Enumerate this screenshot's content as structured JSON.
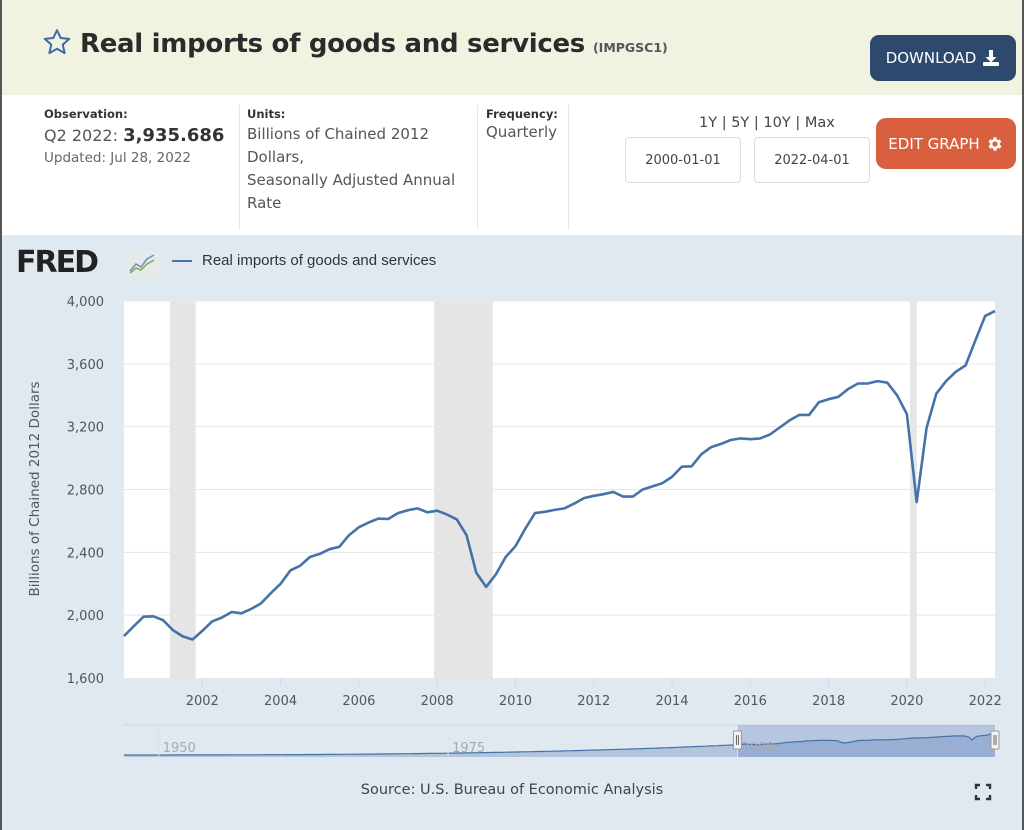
{
  "header": {
    "title": "Real imports of goods and services",
    "series_id": "(IMPGSC1)",
    "favorite_icon": "star-outline-icon",
    "download_label": "DOWNLOAD",
    "download_icon": "download-icon"
  },
  "info": {
    "observation_label": "Observation:",
    "observation_period": "Q2 2022:",
    "observation_value": "3,935.686",
    "updated": "Updated: Jul 28, 2022",
    "units_label": "Units:",
    "units_lines": [
      "Billions of Chained 2012",
      "Dollars,",
      "Seasonally Adjusted Annual",
      "Rate"
    ],
    "frequency_label": "Frequency:",
    "frequency_value": "Quarterly",
    "range_links": [
      "1Y",
      "5Y",
      "10Y",
      "Max"
    ],
    "range_separator": " | ",
    "start_date": "2000-01-01",
    "end_date": "2022-04-01",
    "edit_label": "EDIT GRAPH",
    "edit_icon": "gear-icon"
  },
  "chart_header": {
    "logo_text": "FRED",
    "logo_icon": "fred-chart-icon",
    "legend_label": "Real imports of goods and services"
  },
  "footer": {
    "source": "Source: U.S. Bureau of Economic Analysis",
    "fullscreen_icon": "fullscreen-icon"
  },
  "colors": {
    "line": "#4572a7",
    "header_bg": "#f1f2e0",
    "download_bg": "#2d4a6e",
    "edit_bg": "#d9603f",
    "chart_bg": "#e1e9f0",
    "recession": "#e5e5e5"
  },
  "chart_data": {
    "type": "line",
    "title": "Real imports of goods and services",
    "xlabel": "",
    "ylabel": "Billions of Chained 2012 Dollars",
    "ylim": [
      1600,
      4000
    ],
    "xlim": [
      2000.0,
      2022.25
    ],
    "y_ticks": [
      "1,600",
      "2,000",
      "2,400",
      "2,800",
      "3,200",
      "3,600",
      "4,000"
    ],
    "y_tick_values": [
      1600,
      2000,
      2400,
      2800,
      3200,
      3600,
      4000
    ],
    "x_ticks": [
      "2002",
      "2004",
      "2006",
      "2008",
      "2010",
      "2012",
      "2014",
      "2016",
      "2018",
      "2020",
      "2022"
    ],
    "x_tick_values": [
      2002,
      2004,
      2006,
      2008,
      2010,
      2012,
      2014,
      2016,
      2018,
      2020,
      2022
    ],
    "grid": true,
    "legend": "top-left",
    "recessions": [
      [
        2001.17,
        2001.83
      ],
      [
        2007.92,
        2009.42
      ],
      [
        2020.08,
        2020.25
      ]
    ],
    "navigator": {
      "labels": [
        "1950",
        "1975",
        "2000"
      ],
      "label_years": [
        1950,
        1975,
        2000
      ],
      "range_years": [
        1947,
        2022.25
      ],
      "selected": [
        2000,
        2022.25
      ]
    },
    "series": [
      {
        "name": "Real imports of goods and services",
        "start": "2000-01-01",
        "frequency": "quarterly",
        "values": [
          1867,
          1930,
          1990,
          1993,
          1968,
          1905,
          1865,
          1845,
          1900,
          1960,
          1985,
          2020,
          2012,
          2040,
          2075,
          2140,
          2200,
          2285,
          2315,
          2370,
          2390,
          2420,
          2435,
          2510,
          2560,
          2590,
          2615,
          2612,
          2650,
          2668,
          2680,
          2655,
          2665,
          2640,
          2610,
          2510,
          2270,
          2180,
          2260,
          2370,
          2440,
          2550,
          2650,
          2658,
          2670,
          2680,
          2710,
          2745,
          2760,
          2770,
          2785,
          2755,
          2755,
          2800,
          2820,
          2840,
          2880,
          2945,
          2948,
          3025,
          3070,
          3090,
          3115,
          3125,
          3120,
          3125,
          3150,
          3195,
          3240,
          3275,
          3275,
          3355,
          3375,
          3390,
          3440,
          3475,
          3475,
          3490,
          3480,
          3400,
          3280,
          2720,
          3190,
          3410,
          3490,
          3550,
          3590,
          3750,
          3905,
          3936
        ]
      }
    ]
  }
}
